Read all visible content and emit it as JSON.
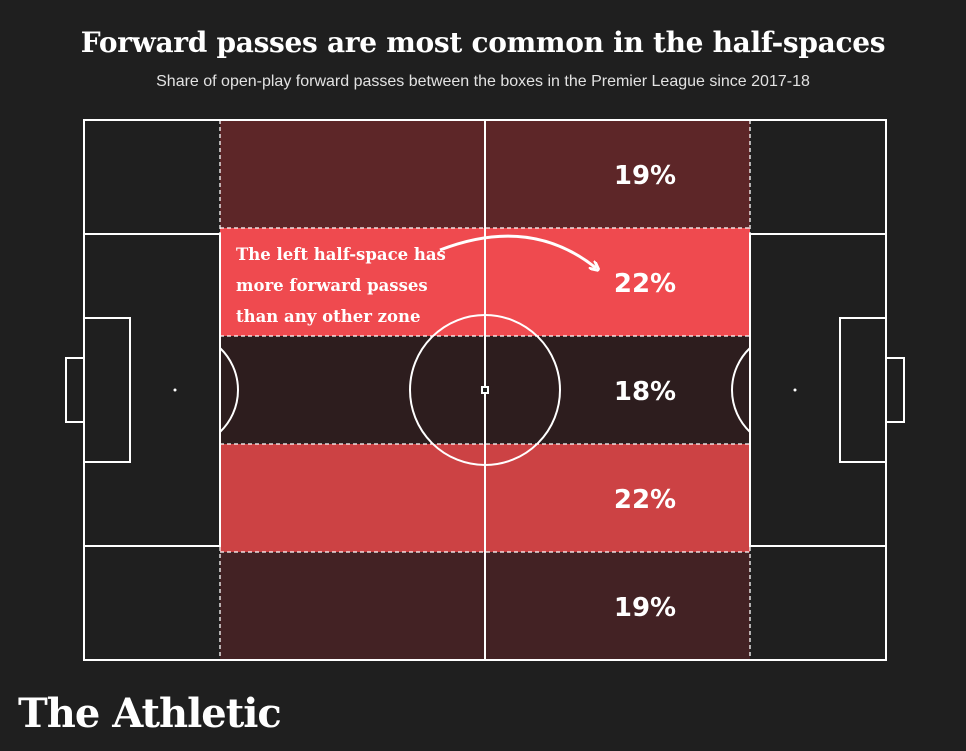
{
  "header": {
    "title": "Forward passes are most common in the half-spaces",
    "subtitle": "Share of open-play forward passes between the boxes in the Premier League since 2017-18"
  },
  "annotation": {
    "lines": [
      "The left half-space has",
      "more forward passes",
      "than any other zone"
    ]
  },
  "brand": {
    "name": "The Athletic"
  },
  "colors": {
    "background": "#1f1f1f",
    "pitch_lines": "#ffffff",
    "highlight_zone": "#ef4a4f"
  },
  "chart_data": {
    "type": "heatmap",
    "title": "Forward passes are most common in the half-spaces",
    "subtitle": "Share of open-play forward passes between the boxes in the Premier League since 2017-18",
    "unit": "%",
    "zones": [
      {
        "value": 19,
        "label": "19%",
        "color": "#5d2628"
      },
      {
        "value": 22,
        "label": "22%",
        "color": "#ef4a4f",
        "highlighted": true
      },
      {
        "value": 18,
        "label": "18%",
        "color": "#2d1d1e"
      },
      {
        "value": 22,
        "label": "22%",
        "color": "#cc4244"
      },
      {
        "value": 19,
        "label": "19%",
        "color": "#432224"
      }
    ]
  }
}
